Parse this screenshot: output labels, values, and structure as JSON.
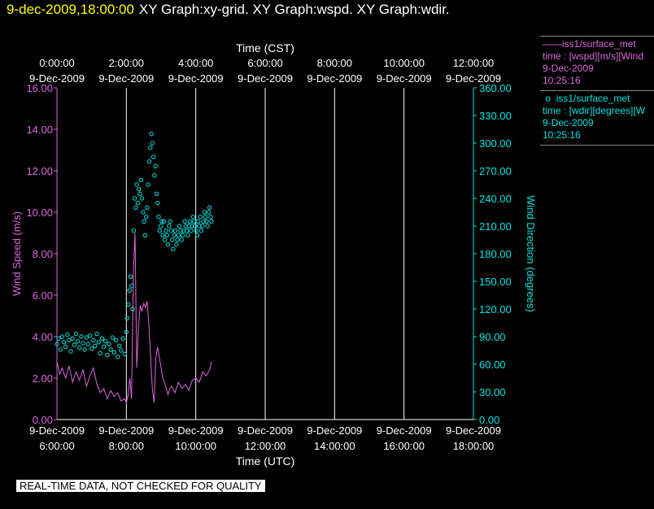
{
  "header": {
    "timestamp": "9-dec-2009,18:00:00",
    "graphs": "XY Graph:xy-grid.  XY Graph:wspd.  XY Graph:wdir."
  },
  "legend": [
    {
      "marker": "——",
      "name": "iss1/surface_met",
      "desc": "time : [wspd][m/s][Wind",
      "date": "9-Dec-2009",
      "time": "10:25:16",
      "color": "#dd66dd"
    },
    {
      "marker": "o",
      "name": "iss1/surface_met",
      "desc": "time : [wdir][degrees][W",
      "date": "9-Dec-2009",
      "time": "10:25:16",
      "color": "#00e5e5"
    }
  ],
  "notice": "REAL-TIME DATA, NOT CHECKED FOR QUALITY",
  "chart_data": {
    "type": "line",
    "top_axis_title": "Time (CST)",
    "bottom_axis_title": "Time (UTC)",
    "ylabel_left": "Wind Speed (m/s)",
    "ylabel_right": "Wind Direction (degrees)",
    "x_range_utc_hours": [
      6,
      18
    ],
    "ylim_left": [
      0,
      16
    ],
    "ylim_right": [
      0,
      360
    ],
    "top_ticks": [
      {
        "time": "0:00:00",
        "date": "9-Dec-2009"
      },
      {
        "time": "2:00:00",
        "date": "9-Dec-2009"
      },
      {
        "time": "4:00:00",
        "date": "9-Dec-2009"
      },
      {
        "time": "6:00:00",
        "date": "9-Dec-2009"
      },
      {
        "time": "8:00:00",
        "date": "9-Dec-2009"
      },
      {
        "time": "10:00:00",
        "date": "9-Dec-2009"
      },
      {
        "time": "12:00:00",
        "date": "9-Dec-2009"
      }
    ],
    "bottom_ticks": [
      {
        "time": "6:00:00",
        "date": "9-Dec-2009"
      },
      {
        "time": "8:00:00",
        "date": "9-Dec-2009"
      },
      {
        "time": "10:00:00",
        "date": "9-Dec-2009"
      },
      {
        "time": "12:00:00",
        "date": "9-Dec-2009"
      },
      {
        "time": "14:00:00",
        "date": "9-Dec-2009"
      },
      {
        "time": "16:00:00",
        "date": "9-Dec-2009"
      },
      {
        "time": "18:00:00",
        "date": "9-Dec-2009"
      }
    ],
    "left_ticks": [
      "0.00",
      "2.00",
      "4.00",
      "6.00",
      "8.00",
      "10.00",
      "12.00",
      "14.00",
      "16.00"
    ],
    "right_ticks": [
      "0.00",
      "30.00",
      "60.00",
      "90.00",
      "120.00",
      "150.00",
      "180.00",
      "210.00",
      "240.00",
      "270.00",
      "300.00",
      "330.00",
      "360.00"
    ],
    "grid": "vertical",
    "series": [
      {
        "name": "iss1/surface_met wspd",
        "style": "line",
        "color": "#dd66dd",
        "axis": "left",
        "x": [
          6.0,
          6.08,
          6.15,
          6.25,
          6.35,
          6.45,
          6.55,
          6.65,
          6.75,
          6.85,
          6.95,
          7.05,
          7.15,
          7.25,
          7.35,
          7.45,
          7.55,
          7.65,
          7.75,
          7.85,
          7.95,
          8.0,
          8.05,
          8.1,
          8.15,
          8.2,
          8.25,
          8.3,
          8.35,
          8.4,
          8.45,
          8.5,
          8.55,
          8.6,
          8.65,
          8.7,
          8.75,
          8.8,
          8.85,
          8.9,
          8.95,
          9.0,
          9.05,
          9.1,
          9.15,
          9.2,
          9.25,
          9.3,
          9.4,
          9.5,
          9.6,
          9.7,
          9.8,
          9.9,
          10.0,
          10.1,
          10.2,
          10.3,
          10.4,
          10.45
        ],
        "values": [
          2.8,
          2.2,
          2.5,
          2.0,
          2.6,
          1.8,
          2.3,
          1.9,
          2.4,
          1.6,
          2.1,
          2.5,
          1.7,
          1.3,
          1.5,
          1.0,
          1.4,
          1.1,
          1.3,
          0.9,
          1.0,
          0.8,
          1.2,
          2.0,
          1.0,
          7.0,
          9.0,
          2.5,
          4.5,
          5.5,
          5.2,
          5.6,
          5.4,
          5.7,
          4.5,
          3.0,
          1.5,
          0.8,
          3.0,
          3.5,
          3.0,
          2.5,
          2.0,
          1.8,
          1.5,
          1.2,
          1.5,
          1.6,
          1.3,
          1.8,
          1.5,
          1.7,
          1.4,
          1.9,
          2.0,
          1.8,
          2.3,
          2.1,
          2.4,
          2.8
        ]
      },
      {
        "name": "iss1/surface_met wdir",
        "style": "scatter",
        "color": "#00e5e5",
        "axis": "right",
        "x": [
          6.0,
          6.05,
          6.1,
          6.15,
          6.2,
          6.25,
          6.3,
          6.35,
          6.4,
          6.45,
          6.5,
          6.55,
          6.6,
          6.65,
          6.7,
          6.75,
          6.8,
          6.85,
          6.9,
          6.95,
          7.0,
          7.05,
          7.1,
          7.15,
          7.2,
          7.25,
          7.3,
          7.35,
          7.4,
          7.45,
          7.5,
          7.55,
          7.6,
          7.65,
          7.7,
          7.75,
          7.8,
          7.85,
          7.9,
          7.95,
          8.0,
          8.03,
          8.06,
          8.09,
          8.12,
          8.15,
          8.18,
          8.21,
          8.24,
          8.27,
          8.3,
          8.33,
          8.36,
          8.39,
          8.42,
          8.45,
          8.48,
          8.51,
          8.54,
          8.57,
          8.6,
          8.63,
          8.66,
          8.69,
          8.72,
          8.75,
          8.78,
          8.81,
          8.84,
          8.87,
          8.9,
          8.93,
          8.96,
          8.99,
          9.02,
          9.05,
          9.08,
          9.11,
          9.14,
          9.17,
          9.2,
          9.23,
          9.26,
          9.29,
          9.32,
          9.35,
          9.38,
          9.41,
          9.44,
          9.47,
          9.5,
          9.53,
          9.56,
          9.59,
          9.62,
          9.65,
          9.68,
          9.71,
          9.74,
          9.77,
          9.8,
          9.83,
          9.86,
          9.89,
          9.92,
          9.95,
          9.98,
          10.01,
          10.04,
          10.07,
          10.1,
          10.13,
          10.16,
          10.19,
          10.22,
          10.25,
          10.28,
          10.31,
          10.34,
          10.37,
          10.4,
          10.43,
          10.45
        ],
        "values": [
          82,
          88,
          76,
          90,
          84,
          79,
          92,
          86,
          74,
          88,
          81,
          93,
          85,
          78,
          90,
          83,
          76,
          89,
          82,
          91,
          77,
          86,
          80,
          93,
          84,
          72,
          88,
          79,
          85,
          70,
          82,
          76,
          89,
          73,
          86,
          68,
          80,
          75,
          88,
          71,
          95,
          110,
          125,
          140,
          155,
          145,
          120,
          205,
          240,
          230,
          255,
          235,
          250,
          245,
          260,
          240,
          225,
          215,
          200,
          220,
          230,
          255,
          280,
          295,
          310,
          300,
          285,
          265,
          275,
          245,
          235,
          220,
          205,
          210,
          215,
          200,
          215,
          195,
          205,
          200,
          190,
          210,
          215,
          205,
          195,
          185,
          200,
          205,
          190,
          195,
          200,
          210,
          205,
          195,
          200,
          205,
          215,
          210,
          205,
          200,
          210,
          215,
          205,
          210,
          220,
          215,
          210,
          205,
          200,
          215,
          210,
          220,
          205,
          210,
          215,
          225,
          220,
          215,
          210,
          225,
          230,
          220,
          215
        ]
      }
    ]
  }
}
